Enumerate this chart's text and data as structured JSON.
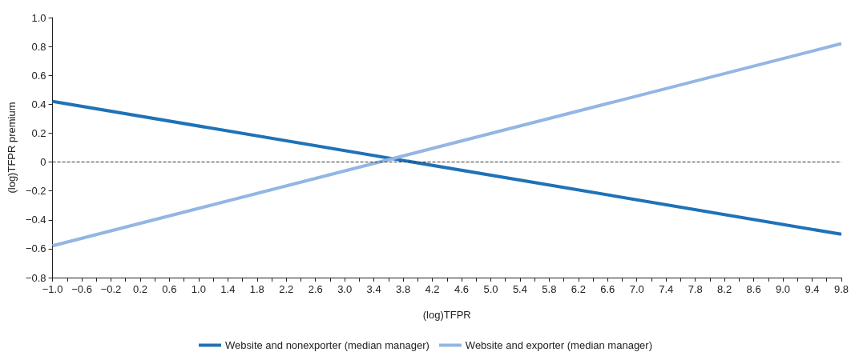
{
  "chart_data": {
    "type": "line",
    "xlabel": "(log)TFPR",
    "ylabel": "(log)TFPR premium",
    "x": [
      -1.0,
      9.8
    ],
    "series": [
      {
        "name": "Website and nonexporter (median manager)",
        "color": "#1f72b8",
        "values": [
          0.42,
          -0.5
        ]
      },
      {
        "name": "Website and exporter (median manager)",
        "color": "#93b6e3",
        "values": [
          -0.58,
          0.82
        ]
      }
    ],
    "xlim": [
      -1.0,
      9.8
    ],
    "xticks": [
      {
        "value": -1.0,
        "label": "−1.0"
      },
      {
        "value": -0.8,
        "label": null
      },
      {
        "value": -0.6,
        "label": "−0.6"
      },
      {
        "value": -0.4,
        "label": null
      },
      {
        "value": -0.2,
        "label": "−0.2"
      },
      {
        "value": 0,
        "label": null
      },
      {
        "value": 0.2,
        "label": "0.2"
      },
      {
        "value": 0.4,
        "label": null
      },
      {
        "value": 0.6,
        "label": "0.6"
      },
      {
        "value": 0.8,
        "label": null
      },
      {
        "value": 1.0,
        "label": "1.0"
      },
      {
        "value": 1.2,
        "label": null
      },
      {
        "value": 1.4,
        "label": "1.4"
      },
      {
        "value": 1.6,
        "label": null
      },
      {
        "value": 1.8,
        "label": "1.8"
      },
      {
        "value": 2.0,
        "label": null
      },
      {
        "value": 2.2,
        "label": "2.2"
      },
      {
        "value": 2.4,
        "label": null
      },
      {
        "value": 2.6,
        "label": "2.6"
      },
      {
        "value": 2.8,
        "label": null
      },
      {
        "value": 3.0,
        "label": "3.0"
      },
      {
        "value": 3.2,
        "label": null
      },
      {
        "value": 3.4,
        "label": "3.4"
      },
      {
        "value": 3.6,
        "label": null
      },
      {
        "value": 3.8,
        "label": "3.8"
      },
      {
        "value": 4.0,
        "label": null
      },
      {
        "value": 4.2,
        "label": "4.2"
      },
      {
        "value": 4.4,
        "label": null
      },
      {
        "value": 4.6,
        "label": "4.6"
      },
      {
        "value": 4.8,
        "label": null
      },
      {
        "value": 5.0,
        "label": "5.0"
      },
      {
        "value": 5.2,
        "label": null
      },
      {
        "value": 5.4,
        "label": "5.4"
      },
      {
        "value": 5.6,
        "label": null
      },
      {
        "value": 5.8,
        "label": "5.8"
      },
      {
        "value": 6.0,
        "label": null
      },
      {
        "value": 6.2,
        "label": "6.2"
      },
      {
        "value": 6.4,
        "label": null
      },
      {
        "value": 6.6,
        "label": "6.6"
      },
      {
        "value": 6.8,
        "label": null
      },
      {
        "value": 7.0,
        "label": "7.0"
      },
      {
        "value": 7.2,
        "label": null
      },
      {
        "value": 7.4,
        "label": "7.4"
      },
      {
        "value": 7.6,
        "label": null
      },
      {
        "value": 7.8,
        "label": "7.8"
      },
      {
        "value": 8.0,
        "label": null
      },
      {
        "value": 8.2,
        "label": "8.2"
      },
      {
        "value": 8.4,
        "label": null
      },
      {
        "value": 8.6,
        "label": "8.6"
      },
      {
        "value": 8.8,
        "label": null
      },
      {
        "value": 9.0,
        "label": "9.0"
      },
      {
        "value": 9.2,
        "label": null
      },
      {
        "value": 9.4,
        "label": "9.4"
      },
      {
        "value": 9.6,
        "label": null
      },
      {
        "value": 9.8,
        "label": "9.8"
      }
    ],
    "ylim": [
      -0.8,
      1.0
    ],
    "yticks": [
      {
        "value": -0.8,
        "label": "−0.8"
      },
      {
        "value": -0.6,
        "label": "−0.6"
      },
      {
        "value": -0.4,
        "label": "−0.4"
      },
      {
        "value": -0.2,
        "label": "−0.2"
      },
      0,
      {
        "value": 0.2,
        "label": "0.2"
      },
      {
        "value": 0.4,
        "label": "0.4"
      },
      {
        "value": 0.6,
        "label": "0.6"
      },
      {
        "value": 0.8,
        "label": "0.8"
      },
      {
        "value": 1.0,
        "label": "1.0"
      }
    ],
    "ref_lines": [
      {
        "axis": "y",
        "value": 0,
        "color": "#333333",
        "line_style": "dashed"
      }
    ],
    "grid": false,
    "legend": "bottom",
    "marker": "none",
    "line_style": "solid"
  }
}
